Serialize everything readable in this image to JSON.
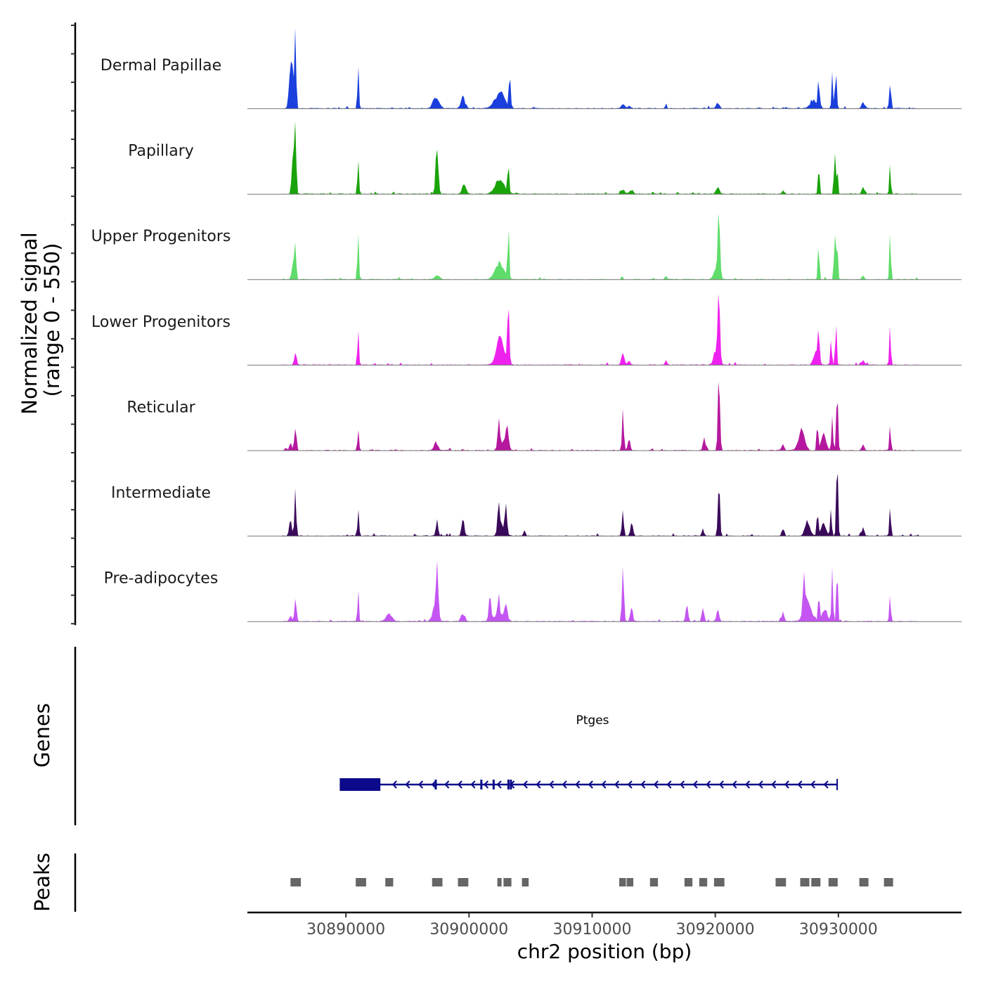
{
  "chart_data": {
    "type": "area",
    "title": "",
    "ylabel_line1": "Normalized signal",
    "ylabel_line2": "(range 0 - 550)",
    "y_range": [
      0,
      550
    ],
    "xlabel": "chr2 position (bp)",
    "xlim": [
      30882000,
      30940000
    ],
    "x_ticks": [
      30890000,
      30900000,
      30910000,
      30920000,
      30930000
    ],
    "x_tick_labels": [
      "30890000",
      "30900000",
      "30910000",
      "30920000",
      "30930000"
    ],
    "noise_range": [
      30884800,
      30936500
    ],
    "series": [
      {
        "name": "Dermal Papillae",
        "color": "#1a3fdc",
        "peaks": [
          [
            30885600,
            360,
            120
          ],
          [
            30885900,
            550,
            70
          ],
          [
            30885400,
            120,
            90
          ],
          [
            30891000,
            290,
            60
          ],
          [
            30897300,
            80,
            250
          ],
          [
            30899500,
            90,
            150
          ],
          [
            30902500,
            120,
            400
          ],
          [
            30903300,
            270,
            60
          ],
          [
            30912500,
            30,
            150
          ],
          [
            30913000,
            25,
            100
          ],
          [
            30916000,
            40,
            60
          ],
          [
            30920200,
            40,
            150
          ],
          [
            30928400,
            250,
            60
          ],
          [
            30929500,
            250,
            60
          ],
          [
            30929800,
            260,
            70
          ],
          [
            30928000,
            60,
            300
          ],
          [
            30932000,
            50,
            120
          ],
          [
            30934200,
            230,
            70
          ]
        ]
      },
      {
        "name": "Papillary",
        "color": "#1aa30a",
        "peaks": [
          [
            30885700,
            300,
            90
          ],
          [
            30885900,
            560,
            70
          ],
          [
            30891000,
            290,
            60
          ],
          [
            30897400,
            390,
            100
          ],
          [
            30899600,
            80,
            150
          ],
          [
            30902500,
            120,
            350
          ],
          [
            30903200,
            240,
            60
          ],
          [
            30912500,
            30,
            150
          ],
          [
            30913200,
            30,
            150
          ],
          [
            30920200,
            50,
            150
          ],
          [
            30925500,
            30,
            100
          ],
          [
            30928400,
            250,
            60
          ],
          [
            30929700,
            290,
            60
          ],
          [
            30929900,
            200,
            60
          ],
          [
            30932000,
            60,
            100
          ],
          [
            30934200,
            240,
            60
          ]
        ]
      },
      {
        "name": "Upper Progenitors",
        "color": "#5fdc6a",
        "peaks": [
          [
            30885700,
            140,
            100
          ],
          [
            30885900,
            270,
            70
          ],
          [
            30891000,
            310,
            60
          ],
          [
            30897400,
            30,
            200
          ],
          [
            30902500,
            130,
            350
          ],
          [
            30903200,
            380,
            60
          ],
          [
            30916000,
            20,
            100
          ],
          [
            30920300,
            540,
            80
          ],
          [
            30920100,
            100,
            200
          ],
          [
            30928400,
            300,
            60
          ],
          [
            30929700,
            370,
            60
          ],
          [
            30929900,
            300,
            60
          ],
          [
            30932000,
            30,
            100
          ],
          [
            30934200,
            330,
            60
          ]
        ]
      },
      {
        "name": "Lower Progenitors",
        "color": "#ee22ee",
        "peaks": [
          [
            30885900,
            110,
            90
          ],
          [
            30891000,
            270,
            60
          ],
          [
            30902500,
            200,
            300
          ],
          [
            30903200,
            440,
            80
          ],
          [
            30912500,
            80,
            120
          ],
          [
            30913000,
            40,
            100
          ],
          [
            30916000,
            40,
            80
          ],
          [
            30920300,
            560,
            80
          ],
          [
            30920100,
            130,
            200
          ],
          [
            30928400,
            270,
            60
          ],
          [
            30928200,
            100,
            200
          ],
          [
            30929400,
            190,
            60
          ],
          [
            30929800,
            350,
            60
          ],
          [
            30932000,
            40,
            100
          ],
          [
            30934200,
            320,
            60
          ]
        ]
      },
      {
        "name": "Reticular",
        "color": "#b5189e",
        "peaks": [
          [
            30885900,
            190,
            80
          ],
          [
            30885500,
            60,
            90
          ],
          [
            30891000,
            140,
            60
          ],
          [
            30897300,
            60,
            150
          ],
          [
            30902400,
            220,
            80
          ],
          [
            30903100,
            160,
            120
          ],
          [
            30902700,
            70,
            250
          ],
          [
            30912500,
            280,
            70
          ],
          [
            30913000,
            100,
            90
          ],
          [
            30920300,
            590,
            80
          ],
          [
            30919100,
            90,
            100
          ],
          [
            30925500,
            50,
            100
          ],
          [
            30927000,
            150,
            250
          ],
          [
            30928300,
            220,
            60
          ],
          [
            30929500,
            280,
            60
          ],
          [
            30929900,
            500,
            70
          ],
          [
            30928800,
            120,
            200
          ],
          [
            30932000,
            50,
            100
          ],
          [
            30934200,
            190,
            60
          ]
        ]
      },
      {
        "name": "Intermediate",
        "color": "#3a0a5a",
        "peaks": [
          [
            30885900,
            330,
            70
          ],
          [
            30885500,
            150,
            90
          ],
          [
            30891000,
            190,
            60
          ],
          [
            30897400,
            120,
            90
          ],
          [
            30899500,
            140,
            100
          ],
          [
            30902400,
            190,
            90
          ],
          [
            30903000,
            210,
            80
          ],
          [
            30902700,
            80,
            250
          ],
          [
            30904500,
            40,
            80
          ],
          [
            30912500,
            230,
            70
          ],
          [
            30913200,
            110,
            90
          ],
          [
            30920300,
            400,
            80
          ],
          [
            30919000,
            40,
            100
          ],
          [
            30925500,
            60,
            100
          ],
          [
            30927500,
            120,
            200
          ],
          [
            30928300,
            230,
            60
          ],
          [
            30929400,
            250,
            60
          ],
          [
            30929900,
            540,
            70
          ],
          [
            30928800,
            100,
            200
          ],
          [
            30932000,
            60,
            100
          ],
          [
            30934200,
            230,
            60
          ]
        ]
      },
      {
        "name": "Pre-adipocytes",
        "color": "#c455f2",
        "peaks": [
          [
            30885900,
            170,
            80
          ],
          [
            30885500,
            50,
            90
          ],
          [
            30891000,
            210,
            60
          ],
          [
            30893500,
            60,
            250
          ],
          [
            30897400,
            380,
            100
          ],
          [
            30897200,
            100,
            200
          ],
          [
            30899500,
            60,
            150
          ],
          [
            30901700,
            200,
            90
          ],
          [
            30902400,
            140,
            80
          ],
          [
            30903000,
            130,
            100
          ],
          [
            30902500,
            60,
            400
          ],
          [
            30912500,
            520,
            70
          ],
          [
            30913200,
            130,
            90
          ],
          [
            30917700,
            130,
            90
          ],
          [
            30919000,
            120,
            90
          ],
          [
            30920200,
            90,
            100
          ],
          [
            30925500,
            70,
            100
          ],
          [
            30927200,
            360,
            80
          ],
          [
            30927500,
            150,
            300
          ],
          [
            30928400,
            230,
            60
          ],
          [
            30929500,
            420,
            60
          ],
          [
            30929900,
            400,
            60
          ],
          [
            30928900,
            100,
            200
          ],
          [
            30934200,
            230,
            60
          ]
        ]
      }
    ],
    "genes_track": {
      "label": "Genes",
      "gene_name": "Ptges",
      "strand": "-",
      "start": 30889500,
      "end": 30929900,
      "thick_start": 30889500,
      "thick_end": 30892800,
      "exons": [
        30897300,
        30901000,
        30902000,
        30903200,
        30903400
      ]
    },
    "peaks_track": {
      "label": "Peaks",
      "color": "#666666",
      "regions": [
        [
          30885500,
          30886400
        ],
        [
          30890800,
          30891700
        ],
        [
          30893200,
          30893900
        ],
        [
          30897000,
          30897900
        ],
        [
          30899100,
          30900000
        ],
        [
          30902300,
          30902700
        ],
        [
          30902800,
          30903500
        ],
        [
          30904300,
          30904900
        ],
        [
          30912200,
          30912800
        ],
        [
          30912800,
          30913400
        ],
        [
          30914700,
          30915400
        ],
        [
          30917500,
          30918200
        ],
        [
          30918700,
          30919400
        ],
        [
          30919900,
          30920800
        ],
        [
          30924900,
          30925800
        ],
        [
          30926900,
          30927700
        ],
        [
          30927800,
          30928600
        ],
        [
          30929200,
          30930000
        ],
        [
          30931700,
          30932500
        ],
        [
          30933700,
          30934500
        ]
      ]
    }
  }
}
